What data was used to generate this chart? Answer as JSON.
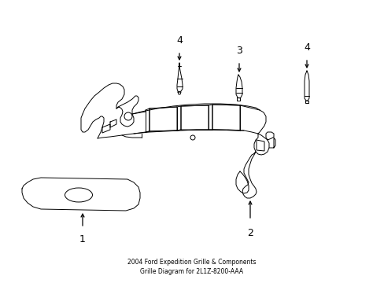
{
  "title": "2004 Ford Expedition Grille & Components\nGrille Diagram for 2L1Z-8200-AAA",
  "background_color": "#ffffff",
  "line_color": "#000000",
  "text_color": "#000000",
  "figsize": [
    4.89,
    3.6
  ],
  "dpi": 100,
  "lw": 0.7
}
